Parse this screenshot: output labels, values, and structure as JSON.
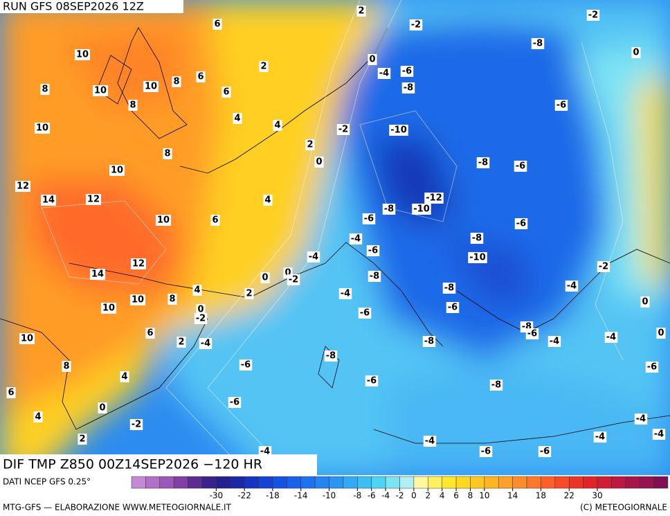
{
  "header": {
    "run": "RUN GFS 08SEP2026 12Z",
    "field": "DIF TMP Z850 00Z14SEP2026 −120 HR"
  },
  "contour_labels": [
    2,
    -2,
    -2,
    6,
    10,
    -8,
    0,
    2,
    0,
    -4,
    -6,
    6,
    8,
    10,
    10,
    8,
    6,
    -8,
    8,
    -6,
    4,
    10,
    4,
    -2,
    -10,
    2,
    8,
    0,
    -8,
    -6,
    10,
    12,
    14,
    12,
    4,
    -12,
    -8,
    -10,
    10,
    6,
    -6,
    -6,
    -4,
    -8,
    -6,
    -4,
    -10,
    12,
    -2,
    14,
    0,
    0,
    -2,
    -8,
    -4,
    4,
    2,
    -4,
    -8,
    10,
    8,
    0,
    -6,
    0,
    10,
    -2,
    -6,
    -8,
    -6,
    6,
    0,
    -4,
    -4,
    10,
    2,
    -4,
    -8,
    -6,
    -8,
    -6,
    8,
    4,
    -6,
    -8,
    6,
    -6,
    0,
    4,
    -2,
    -4,
    -4,
    -4,
    2,
    -4,
    -6,
    -6,
    -4
  ],
  "colorbar": {
    "colors": [
      "#c58ad6",
      "#b070c8",
      "#9a58b8",
      "#8040a4",
      "#5a2c94",
      "#3a2388",
      "#23208f",
      "#1a28a8",
      "#1534c0",
      "#1444d4",
      "#1652e2",
      "#1a62ec",
      "#1e72f0",
      "#2484f2",
      "#2a96f4",
      "#32aaf4",
      "#3cc0f4",
      "#4cd4f4",
      "#7ae4f4",
      "#b0f0f4",
      "#fff8a0",
      "#fff060",
      "#ffe82a",
      "#ffd820",
      "#ffc820",
      "#ffb424",
      "#ffa028",
      "#ff8c2a",
      "#ff782a",
      "#ff602a",
      "#f64a28",
      "#ec3426",
      "#e02428",
      "#d01c34",
      "#bc1840",
      "#a8144a",
      "#961250",
      "#820e52"
    ],
    "ticks": [
      -30,
      -22,
      -18,
      -14,
      -10,
      -8,
      -6,
      -4,
      -2,
      0,
      2,
      4,
      6,
      8,
      10,
      14,
      18,
      22,
      30
    ]
  },
  "footer": {
    "source": "DATI NCEP GFS 0.25°",
    "credit": "MTG-GFS — ELABORAZIONE WWW.METEOGIORNALE.IT",
    "copyright": "(C) METEOGIORNALE"
  }
}
